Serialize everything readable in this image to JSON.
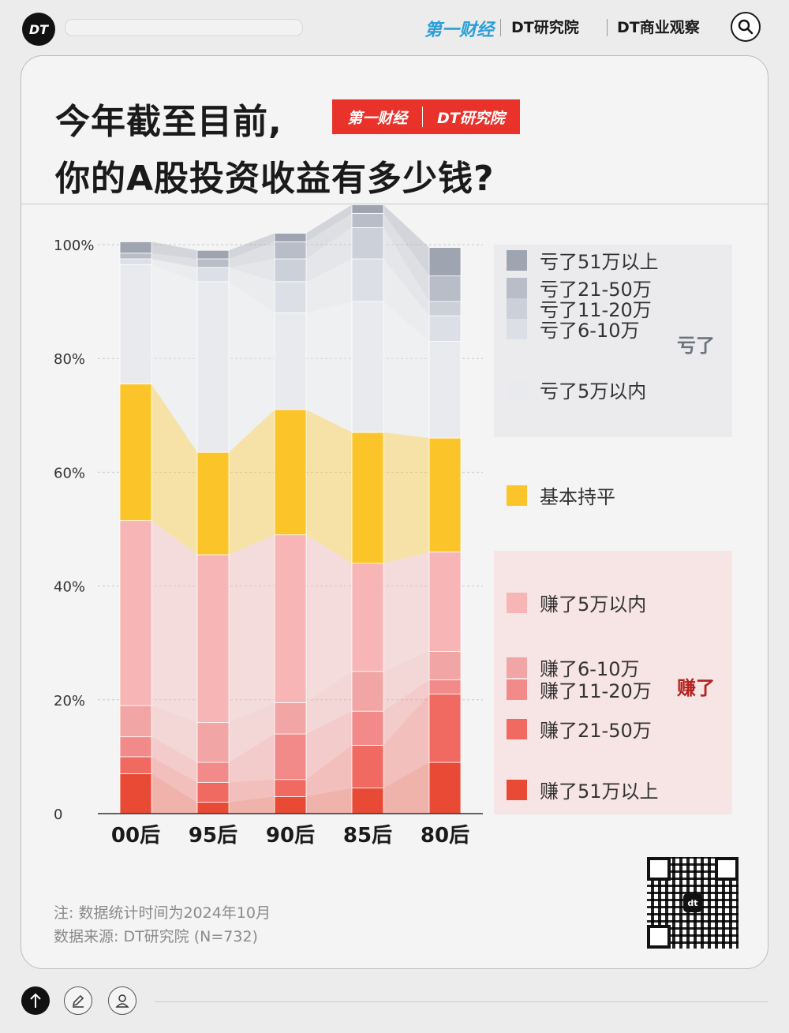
{
  "header": {
    "logo": "DT",
    "brands": [
      "第一财经",
      "DT研究院",
      "DT商业观察"
    ]
  },
  "title": {
    "line1": "今年截至目前,",
    "line2": "你的A股投资收益有多少钱?",
    "badge": [
      "第一财经",
      "DT研究院"
    ]
  },
  "chart_data": {
    "type": "bar",
    "stacked": true,
    "normalized": true,
    "categories": [
      "00后",
      "95后",
      "90后",
      "85后",
      "80后"
    ],
    "y_ticks": [
      "0",
      "20%",
      "40%",
      "60%",
      "80%",
      "100%"
    ],
    "ylim": [
      0,
      100
    ],
    "grid": true,
    "legend_position": "right",
    "series": [
      {
        "name": "赚了51万以上",
        "group": "赚了",
        "color": "#e84a36",
        "values": [
          7,
          2,
          3,
          4.5,
          9
        ]
      },
      {
        "name": "赚了21-50万",
        "group": "赚了",
        "color": "#f06a62",
        "values": [
          3,
          3.5,
          3,
          7.5,
          12
        ]
      },
      {
        "name": "赚了11-20万",
        "group": "赚了",
        "color": "#f28a8a",
        "values": [
          3.5,
          3.5,
          8,
          6,
          2.5
        ]
      },
      {
        "name": "赚了6-10万",
        "group": "赚了",
        "color": "#f2a5a5",
        "values": [
          5.5,
          7,
          5.5,
          7,
          5
        ]
      },
      {
        "name": "赚了5万以内",
        "group": "赚了",
        "color": "#f8b5b5",
        "values": [
          32.5,
          29.5,
          29.5,
          19,
          17.5
        ]
      },
      {
        "name": "基本持平",
        "group": "",
        "color": "#fbc52a",
        "values": [
          24,
          18,
          22,
          23,
          20
        ]
      },
      {
        "name": "亏了5万以内",
        "group": "亏了",
        "color": "#e8eaee",
        "values": [
          21,
          30,
          17,
          23,
          17
        ]
      },
      {
        "name": "亏了6-10万",
        "group": "亏了",
        "color": "#dcdfe6",
        "values": [
          1,
          2.5,
          5.5,
          7.5,
          4.5
        ]
      },
      {
        "name": "亏了11-20万",
        "group": "亏了",
        "color": "#ccd0d9",
        "values": [
          0,
          0,
          4,
          5.5,
          2.5
        ]
      },
      {
        "name": "亏了21-50万",
        "group": "亏了",
        "color": "#b9bdc8",
        "values": [
          1,
          1.5,
          3,
          2.5,
          4.5
        ]
      },
      {
        "name": "亏了51万以上",
        "group": "亏了",
        "color": "#9fa4b1",
        "values": [
          2,
          1.5,
          1.5,
          1.5,
          5
        ]
      }
    ],
    "group_labels": {
      "loss": "亏了",
      "gain": "赚了"
    }
  },
  "footer": {
    "note": "注: 数据统计时间为2024年10月",
    "source": "数据来源: DT研究院 (N=732)",
    "qr_label": "dt"
  }
}
